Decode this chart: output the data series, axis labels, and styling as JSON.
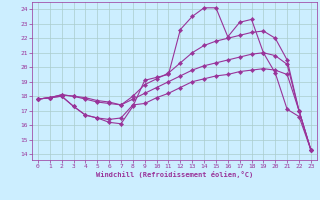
{
  "xlabel": "Windchill (Refroidissement éolien,°C)",
  "bg_color": "#cceeff",
  "grid_color": "#aacccc",
  "line_color": "#993399",
  "x_ticks": [
    0,
    1,
    2,
    3,
    4,
    5,
    6,
    7,
    8,
    9,
    10,
    11,
    12,
    13,
    14,
    15,
    16,
    17,
    18,
    19,
    20,
    21,
    22,
    23
  ],
  "y_ticks": [
    14,
    15,
    16,
    17,
    18,
    19,
    20,
    21,
    22,
    23,
    24
  ],
  "xlim": [
    -0.5,
    23.5
  ],
  "ylim": [
    13.6,
    24.5
  ],
  "lines": [
    {
      "x": [
        0,
        1,
        2,
        3,
        4,
        5,
        6,
        7,
        8,
        9,
        10,
        11,
        12,
        13,
        14,
        15,
        16,
        17,
        18,
        19,
        20,
        21,
        22,
        23
      ],
      "y": [
        17.8,
        17.9,
        18.0,
        17.3,
        16.7,
        16.5,
        16.2,
        16.1,
        17.3,
        19.1,
        19.3,
        19.5,
        22.6,
        23.5,
        24.1,
        24.1,
        22.1,
        23.1,
        23.3,
        21.0,
        19.6,
        17.1,
        16.6,
        14.3
      ]
    },
    {
      "x": [
        0,
        1,
        2,
        3,
        4,
        5,
        6,
        7,
        8,
        9,
        10,
        11,
        12,
        13,
        14,
        15,
        16,
        17,
        18,
        19,
        20,
        21,
        22,
        23
      ],
      "y": [
        17.8,
        17.9,
        18.0,
        17.3,
        16.7,
        16.5,
        16.4,
        16.5,
        17.4,
        17.5,
        17.9,
        18.2,
        18.6,
        19.0,
        19.2,
        19.4,
        19.5,
        19.7,
        19.8,
        19.9,
        19.8,
        19.5,
        17.0,
        14.3
      ]
    },
    {
      "x": [
        0,
        1,
        2,
        3,
        4,
        5,
        6,
        7,
        8,
        9,
        10,
        11,
        12,
        13,
        14,
        15,
        16,
        17,
        18,
        19,
        20,
        21,
        22,
        23
      ],
      "y": [
        17.8,
        17.9,
        18.1,
        18.0,
        17.8,
        17.6,
        17.5,
        17.4,
        17.8,
        18.2,
        18.6,
        19.0,
        19.4,
        19.8,
        20.1,
        20.3,
        20.5,
        20.7,
        20.9,
        21.0,
        20.8,
        20.2,
        17.0,
        14.3
      ]
    },
    {
      "x": [
        0,
        1,
        2,
        3,
        4,
        5,
        6,
        7,
        8,
        9,
        10,
        11,
        12,
        13,
        14,
        15,
        16,
        17,
        18,
        19,
        20,
        21,
        22,
        23
      ],
      "y": [
        17.8,
        17.9,
        18.1,
        18.0,
        17.9,
        17.7,
        17.6,
        17.4,
        18.0,
        18.8,
        19.2,
        19.6,
        20.3,
        21.0,
        21.5,
        21.8,
        22.0,
        22.2,
        22.4,
        22.5,
        22.0,
        20.5,
        17.0,
        14.3
      ]
    }
  ]
}
